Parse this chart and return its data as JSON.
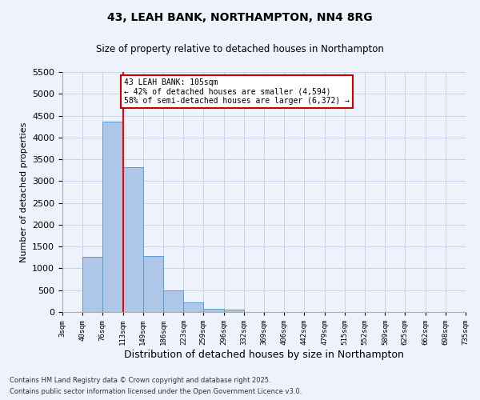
{
  "title1": "43, LEAH BANK, NORTHAMPTON, NN4 8RG",
  "title2": "Size of property relative to detached houses in Northampton",
  "xlabel": "Distribution of detached houses by size in Northampton",
  "ylabel": "Number of detached properties",
  "footer1": "Contains HM Land Registry data © Crown copyright and database right 2025.",
  "footer2": "Contains public sector information licensed under the Open Government Licence v3.0.",
  "bin_labels": [
    "3sqm",
    "40sqm",
    "76sqm",
    "113sqm",
    "149sqm",
    "186sqm",
    "223sqm",
    "259sqm",
    "296sqm",
    "332sqm",
    "369sqm",
    "406sqm",
    "442sqm",
    "479sqm",
    "515sqm",
    "552sqm",
    "589sqm",
    "625sqm",
    "662sqm",
    "698sqm",
    "735sqm"
  ],
  "bar_values": [
    0,
    1265,
    4370,
    3310,
    1280,
    500,
    215,
    80,
    50,
    0,
    0,
    0,
    0,
    0,
    0,
    0,
    0,
    0,
    0,
    0
  ],
  "bin_edges": [
    3,
    40,
    76,
    113,
    149,
    186,
    223,
    259,
    296,
    332,
    369,
    406,
    442,
    479,
    515,
    552,
    589,
    625,
    662,
    698,
    735
  ],
  "bar_color": "#aec6e8",
  "bar_edge_color": "#5b9bd5",
  "grid_color": "#c8d4e8",
  "background_color": "#eef2fa",
  "red_line_x": 113,
  "annotation_text": "43 LEAH BANK: 105sqm\n← 42% of detached houses are smaller (4,594)\n58% of semi-detached houses are larger (6,372) →",
  "annotation_box_color": "#ffffff",
  "annotation_box_edge": "#cc0000",
  "ylim": [
    0,
    5500
  ],
  "yticks": [
    0,
    500,
    1000,
    1500,
    2000,
    2500,
    3000,
    3500,
    4000,
    4500,
    5000,
    5500
  ]
}
